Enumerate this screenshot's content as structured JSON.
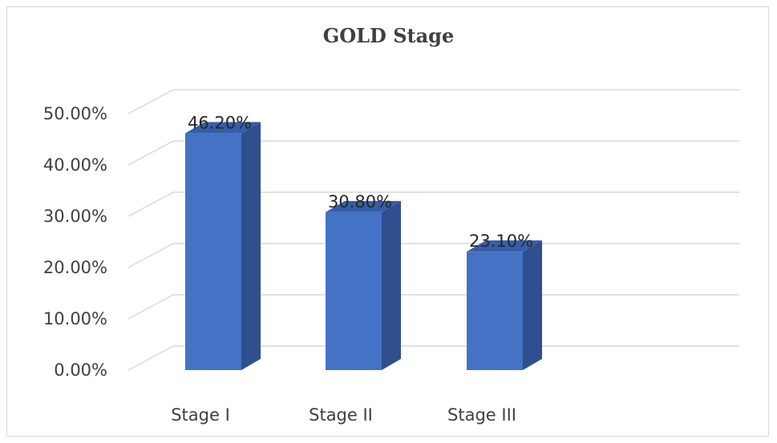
{
  "chart_data": {
    "type": "bar",
    "title": "GOLD Stage",
    "categories": [
      "Stage I",
      "Stage II",
      "Stage III"
    ],
    "values": [
      46.2,
      30.8,
      23.1
    ],
    "value_labels": [
      "46.20%",
      "30.80%",
      "23.10%"
    ],
    "ylim": [
      0,
      50
    ],
    "yticks": [
      "0.00%",
      "10.00%",
      "20.00%",
      "30.00%",
      "40.00%",
      "50.00%"
    ],
    "xlabel": "",
    "ylabel": "",
    "grid": true,
    "style": "3d-column",
    "colors": {
      "front": "#4472c4",
      "side": "#2f4f8f",
      "top": "#365ea8",
      "grid": "#d9d9d9"
    }
  }
}
